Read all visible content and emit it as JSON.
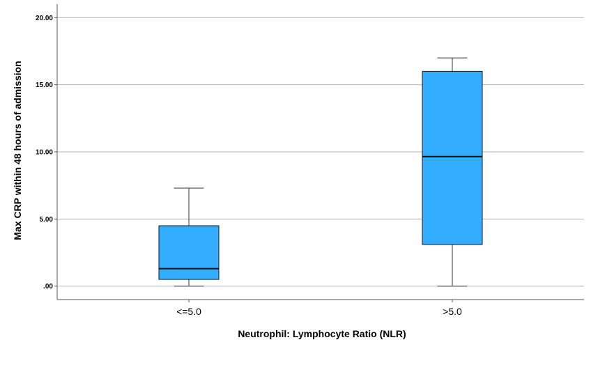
{
  "chart_data": {
    "type": "boxplot",
    "xlabel": "Neutrophil: Lymphocyte Ratio (NLR)",
    "ylabel": "Max CRP within 48 hours of admission",
    "ylim": [
      -1.0,
      21.0
    ],
    "yticks": [
      0,
      5,
      10,
      15,
      20
    ],
    "ytick_labels": [
      ".00",
      "5.00",
      "10.00",
      "15.00",
      "20.00"
    ],
    "grid": "horizontal",
    "categories": [
      "<=5.0",
      ">5.0"
    ],
    "boxes": [
      {
        "category": "<=5.0",
        "min": 0.0,
        "q1": 0.5,
        "median": 1.3,
        "q3": 4.5,
        "max": 7.3
      },
      {
        "category": ">5.0",
        "min": 0.0,
        "q1": 3.1,
        "median": 9.65,
        "q3": 16.0,
        "max": 17.0
      }
    ],
    "colors": {
      "box_fill": "#33adff",
      "box_stroke": "#1a1a1a",
      "grid": "#b3b3b3",
      "frame": "#555555"
    }
  }
}
